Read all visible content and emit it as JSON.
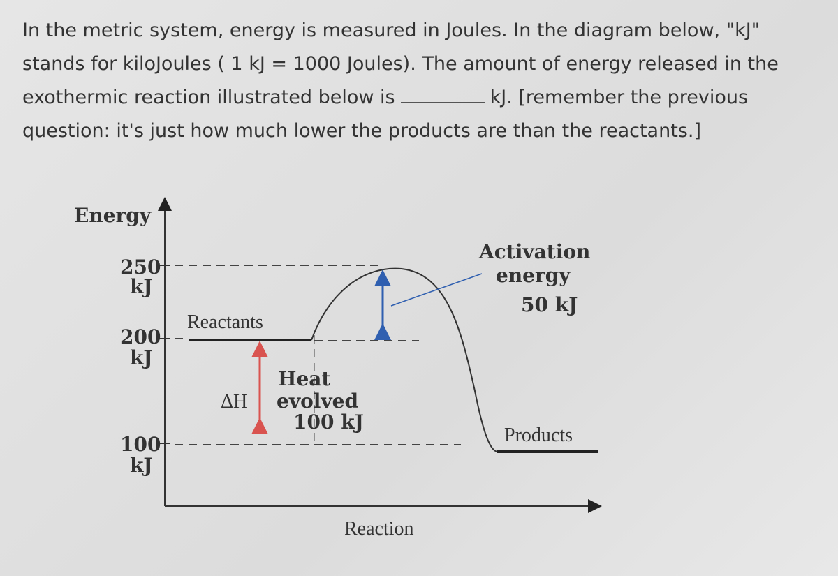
{
  "question": {
    "line1": "In the metric system, energy is measured in Joules. In the diagram below, \"kJ\"",
    "line2": "stands for kiloJoules ( 1 kJ = 1000 Joules). The amount of energy released in the",
    "line3_before": "exothermic reaction illustrated below is",
    "line3_after": "kJ. [remember the previous",
    "line4": "question: it's just how much lower the products are than the reactants.]"
  },
  "diagram": {
    "y_axis_label": "Energy",
    "x_axis_label": "Reaction",
    "tick_250": {
      "value": "250",
      "unit": "kJ"
    },
    "tick_200": {
      "value": "200",
      "unit": "kJ"
    },
    "tick_100": {
      "value": "100",
      "unit": "kJ"
    },
    "reactants": "Reactants",
    "products": "Products",
    "delta_h": "ΔH",
    "heat": {
      "line1": "Heat",
      "line2": "evolved",
      "line3": "100 kJ"
    },
    "activation": {
      "line1": "Activation",
      "line2": "energy",
      "line3": "50 kJ"
    }
  }
}
